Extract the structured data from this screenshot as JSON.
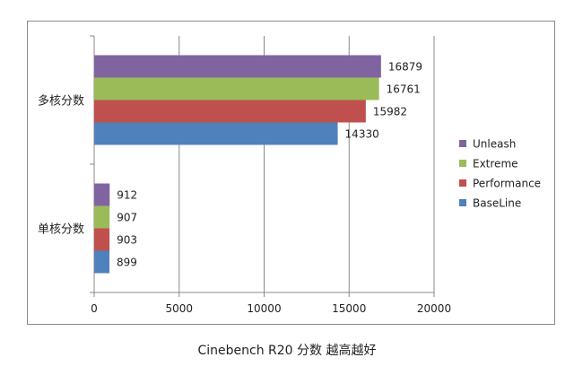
{
  "chart_data": {
    "type": "bar",
    "orientation": "horizontal",
    "title": "Cinebench R20  分数  越高越好",
    "categories": [
      "多核分数",
      "单核分数"
    ],
    "series": [
      {
        "name": "Unleash",
        "color": "#8064a2",
        "values": [
          16879,
          912
        ]
      },
      {
        "name": "Extreme",
        "color": "#9bbb59",
        "values": [
          16761,
          907
        ]
      },
      {
        "name": "Performance",
        "color": "#c0504d",
        "values": [
          15982,
          903
        ]
      },
      {
        "name": "BaseLine",
        "color": "#4f81bd",
        "values": [
          14330,
          899
        ]
      }
    ],
    "xlim": [
      0,
      20000
    ],
    "xticks": [
      0,
      5000,
      10000,
      15000,
      20000
    ],
    "grid": true,
    "legend_position": "right"
  }
}
